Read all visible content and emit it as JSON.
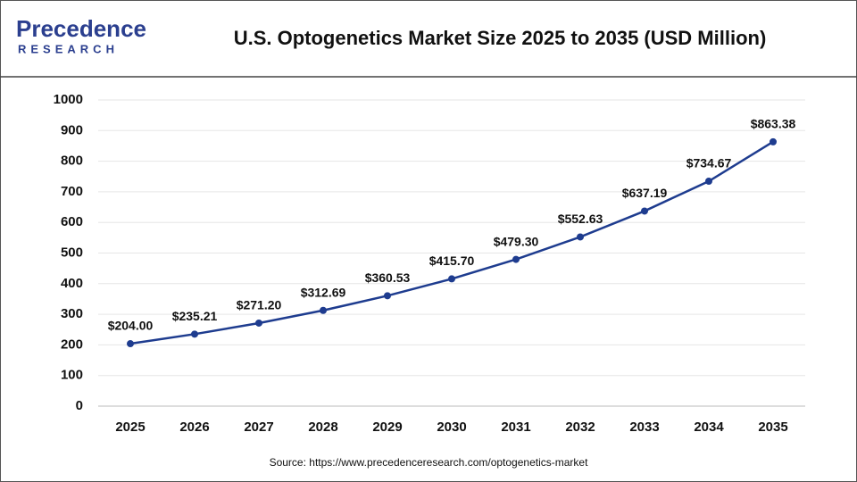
{
  "logo": {
    "name": "Precedence",
    "tagline": "RESEARCH"
  },
  "chart_data": {
    "type": "line",
    "title": "U.S. Optogenetics Market Size 2025 to 2035 (USD Million)",
    "source": "Source: https://www.precedenceresearch.com/optogenetics-market",
    "categories": [
      "2025",
      "2026",
      "2027",
      "2028",
      "2029",
      "2030",
      "2031",
      "2032",
      "2033",
      "2034",
      "2035"
    ],
    "values": [
      204.0,
      235.21,
      271.2,
      312.69,
      360.53,
      415.7,
      479.3,
      552.63,
      637.19,
      734.67,
      863.38
    ],
    "value_labels": [
      "$204.00",
      "$235.21",
      "$271.20",
      "$312.69",
      "$360.53",
      "$415.70",
      "$479.30",
      "$552.63",
      "$637.19",
      "$734.67",
      "$863.38"
    ],
    "color": "#1e3c8f",
    "ylim": [
      0,
      1000
    ],
    "yticks": [
      0,
      100,
      200,
      300,
      400,
      500,
      600,
      700,
      800,
      900,
      1000
    ],
    "grid": true
  }
}
